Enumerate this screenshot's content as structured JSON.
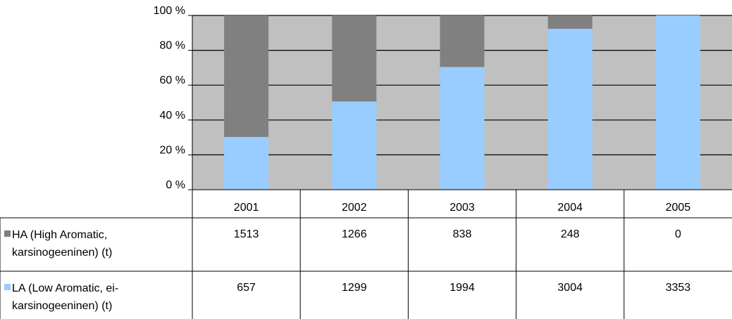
{
  "chart_data": {
    "type": "bar",
    "stacked": "percent",
    "categories": [
      "2001",
      "2002",
      "2003",
      "2004",
      "2005"
    ],
    "series": [
      {
        "name": "HA (High Aromatic, karsinogeeninen) (t)",
        "name_lines": [
          "HA (High Aromatic,",
          "karsinogeeninen) (t)"
        ],
        "color": "#808080",
        "values": [
          1513,
          1266,
          838,
          248,
          0
        ]
      },
      {
        "name": "LA (Low Aromatic, ei-karsinogeeninen) (t)",
        "name_lines": [
          "LA (Low Aromatic, ei-",
          "karsinogeeninen) (t)"
        ],
        "color": "#99ccff",
        "values": [
          657,
          1299,
          1994,
          3004,
          3353
        ]
      }
    ],
    "y_ticks": [
      "0 %",
      "20 %",
      "40 %",
      "60 %",
      "80 %",
      "100 %"
    ],
    "ylim": [
      0,
      100
    ],
    "grid": true,
    "plot_background": "#c0c0c0",
    "data_table": true
  }
}
